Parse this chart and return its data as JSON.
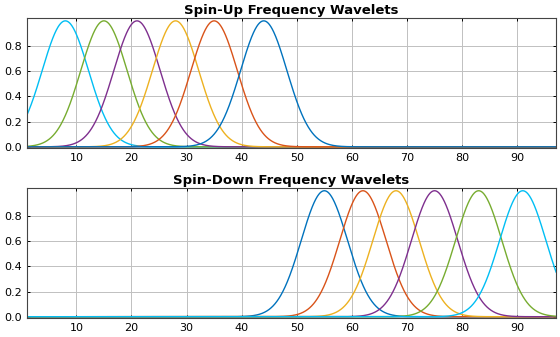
{
  "title1": "Spin-Up Frequency Wavelets",
  "title2": "Spin-Down Frequency Wavelets",
  "spinup_centers": [
    8,
    15,
    21,
    28,
    35,
    44
  ],
  "spindown_centers": [
    55,
    62,
    68,
    75,
    83,
    91
  ],
  "spinup_colors": [
    "#00BEF4",
    "#77AC30",
    "#7E2F8E",
    "#EDB120",
    "#D95319",
    "#0072BD"
  ],
  "spindown_colors": [
    "#0072BD",
    "#D95319",
    "#EDB120",
    "#7E2F8E",
    "#77AC30",
    "#00BEF4"
  ],
  "sigma": 4.2,
  "x_range": [
    1,
    97
  ],
  "x_ticks": [
    10,
    20,
    30,
    40,
    50,
    60,
    70,
    80,
    90
  ],
  "y_ticks": [
    0,
    0.2,
    0.4,
    0.6,
    0.8
  ],
  "figsize": [
    5.6,
    3.37
  ],
  "dpi": 100,
  "background": "#ffffff",
  "grid_color": "#c0c0c0"
}
